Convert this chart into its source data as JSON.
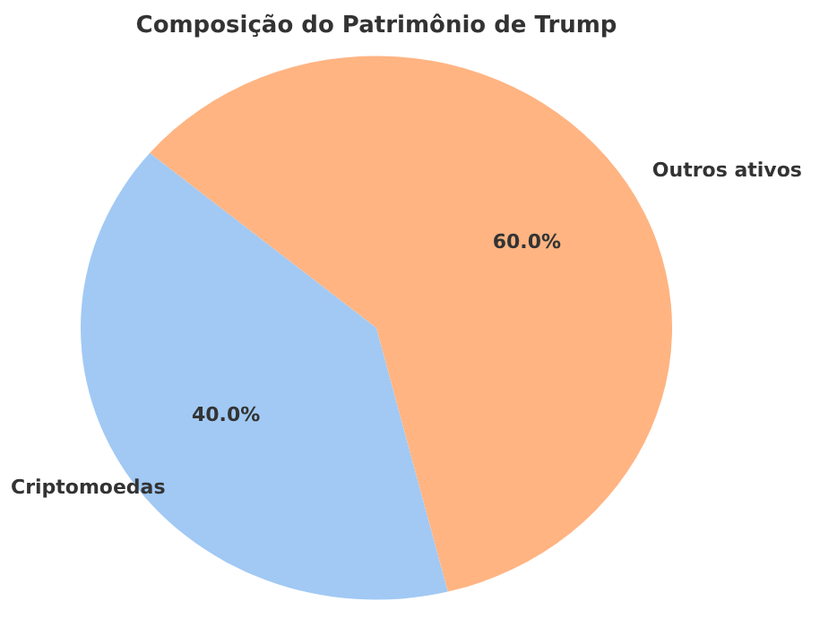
{
  "chart_data": {
    "type": "pie",
    "title": "Composição do Patrimônio de Trump",
    "categories": [
      "Criptomoedas",
      "Outros ativos"
    ],
    "values": [
      40,
      60
    ],
    "colors": [
      "#a1c9f4",
      "#ffb482"
    ],
    "value_labels": [
      "40.0%",
      "60.0%"
    ]
  }
}
